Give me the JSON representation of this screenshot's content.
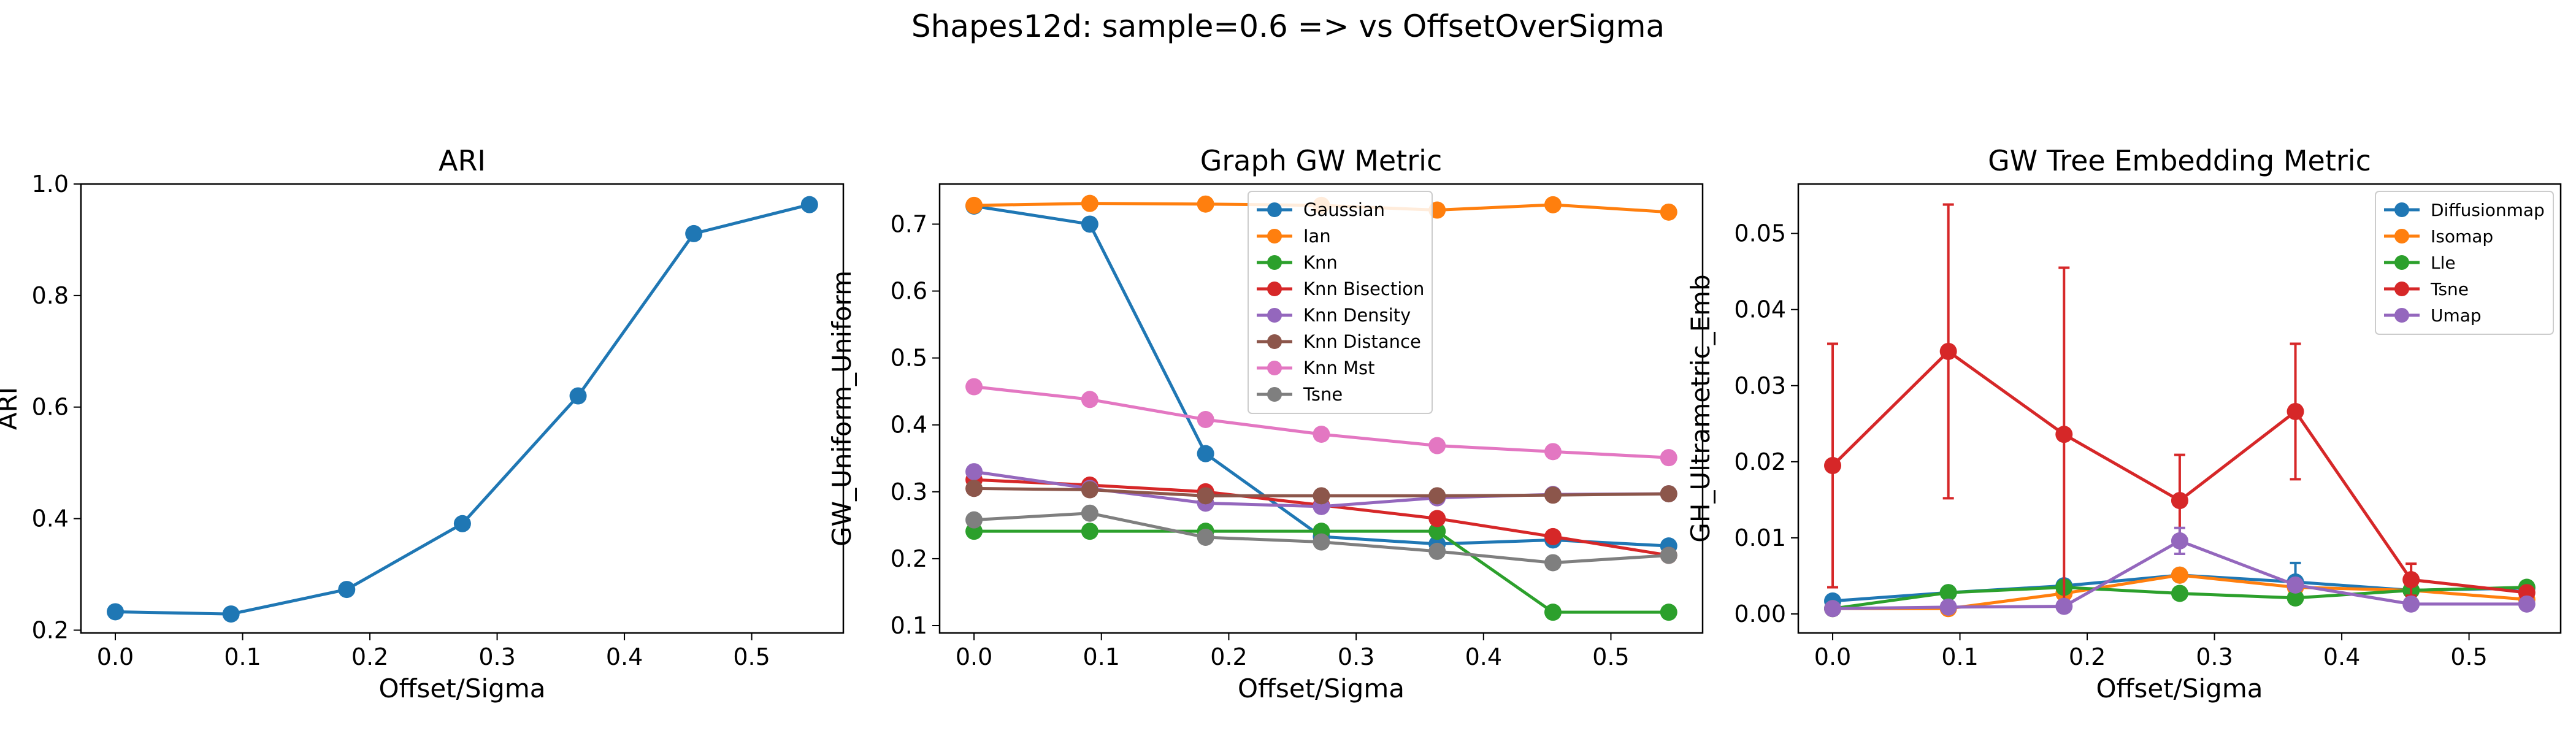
{
  "figure_title": "Shapes12d: sample=0.6 => vs OffsetOverSigma",
  "colors": {
    "blue": "#1f77b4",
    "orange": "#ff7f0e",
    "green": "#2ca02c",
    "red": "#d62728",
    "purple": "#9467bd",
    "brown": "#8c564b",
    "pink": "#e377c2",
    "gray": "#7f7f7f"
  },
  "chart_data": [
    {
      "type": "line",
      "title": "ARI",
      "xlabel": "Offset/Sigma",
      "ylabel": "ARI",
      "x": [
        0.0,
        0.0909,
        0.1818,
        0.2727,
        0.3636,
        0.4545,
        0.5454
      ],
      "xlim": [
        -0.027,
        0.572
      ],
      "ylim": [
        0.195,
        1.0
      ],
      "xticks": [
        0.0,
        0.1,
        0.2,
        0.3,
        0.4,
        0.5
      ],
      "xtick_labels": [
        "0.0",
        "0.1",
        "0.2",
        "0.3",
        "0.4",
        "0.5"
      ],
      "yticks": [
        0.2,
        0.4,
        0.6,
        0.8,
        1.0
      ],
      "ytick_labels": [
        "0.2",
        "0.4",
        "0.6",
        "0.8",
        "1.0"
      ],
      "legend": "none",
      "series": [
        {
          "name": "ARI",
          "color": "#1f77b4",
          "values": [
            0.233,
            0.229,
            0.273,
            0.391,
            0.62,
            0.911,
            0.963
          ]
        }
      ]
    },
    {
      "type": "line",
      "title": "Graph GW Metric",
      "xlabel": "Offset/Sigma",
      "ylabel": "GW_Uniform_Uniform",
      "x": [
        0.0,
        0.0909,
        0.1818,
        0.2727,
        0.3636,
        0.4545,
        0.5454
      ],
      "xlim": [
        -0.027,
        0.572
      ],
      "ylim": [
        0.089,
        0.76
      ],
      "xticks": [
        0.0,
        0.1,
        0.2,
        0.3,
        0.4,
        0.5
      ],
      "xtick_labels": [
        "0.0",
        "0.1",
        "0.2",
        "0.3",
        "0.4",
        "0.5"
      ],
      "yticks": [
        0.1,
        0.2,
        0.3,
        0.4,
        0.5,
        0.6,
        0.7
      ],
      "ytick_labels": [
        "0.1",
        "0.2",
        "0.3",
        "0.4",
        "0.5",
        "0.6",
        "0.7"
      ],
      "legend": "top-center",
      "series": [
        {
          "name": "Gaussian",
          "color": "#1f77b4",
          "values": [
            0.727,
            0.7,
            0.357,
            0.233,
            0.222,
            0.228,
            0.219
          ]
        },
        {
          "name": "Ian",
          "color": "#ff7f0e",
          "values": [
            0.728,
            0.731,
            0.73,
            0.728,
            0.721,
            0.729,
            0.718
          ]
        },
        {
          "name": "Knn",
          "color": "#2ca02c",
          "values": [
            0.241,
            0.241,
            0.241,
            0.241,
            0.241,
            0.12,
            0.12
          ]
        },
        {
          "name": "Knn Bisection",
          "color": "#d62728",
          "values": [
            0.318,
            0.31,
            0.3,
            0.28,
            0.26,
            0.233,
            0.205
          ]
        },
        {
          "name": "Knn Density",
          "color": "#9467bd",
          "values": [
            0.33,
            0.305,
            0.283,
            0.278,
            0.291,
            0.296,
            0.297
          ]
        },
        {
          "name": "Knn Distance",
          "color": "#8c564b",
          "values": [
            0.305,
            0.303,
            0.294,
            0.294,
            0.294,
            0.295,
            0.297
          ]
        },
        {
          "name": "Knn Mst",
          "color": "#e377c2",
          "values": [
            0.457,
            0.438,
            0.408,
            0.386,
            0.369,
            0.36,
            0.351
          ]
        },
        {
          "name": "Tsne",
          "color": "#7f7f7f",
          "values": [
            0.258,
            0.268,
            0.232,
            0.225,
            0.211,
            0.194,
            0.205
          ]
        }
      ]
    },
    {
      "type": "line",
      "title": "GW Tree Embedding Metric",
      "xlabel": "Offset/Sigma",
      "ylabel": "GH_Ultrametric_Emb",
      "x": [
        0.0,
        0.0909,
        0.1818,
        0.2727,
        0.3636,
        0.4545,
        0.5454
      ],
      "xlim": [
        -0.027,
        0.572
      ],
      "ylim": [
        -0.0025,
        0.0565
      ],
      "xticks": [
        0.0,
        0.1,
        0.2,
        0.3,
        0.4,
        0.5
      ],
      "xtick_labels": [
        "0.0",
        "0.1",
        "0.2",
        "0.3",
        "0.4",
        "0.5"
      ],
      "yticks": [
        0.0,
        0.01,
        0.02,
        0.03,
        0.04,
        0.05
      ],
      "ytick_labels": [
        "0.00",
        "0.01",
        "0.02",
        "0.03",
        "0.04",
        "0.05"
      ],
      "legend": "top-right",
      "series": [
        {
          "name": "Diffusionmap",
          "color": "#1f77b4",
          "values": [
            0.0017,
            0.0028,
            0.0037,
            0.0051,
            0.0042,
            0.0031,
            0.0034
          ],
          "err": [
            0.0003,
            0.0004,
            0.0004,
            0.0005,
            0.0025,
            0.0004,
            0.0007
          ]
        },
        {
          "name": "Isomap",
          "color": "#ff7f0e",
          "values": [
            0.0007,
            0.0007,
            0.0027,
            0.0051,
            0.0035,
            0.0031,
            0.0019
          ],
          "err": [
            0.0002,
            0.0002,
            0.0004,
            0.0005,
            0.0005,
            0.0004,
            0.0003
          ]
        },
        {
          "name": "Lle",
          "color": "#2ca02c",
          "values": [
            0.0007,
            0.0028,
            0.0035,
            0.0027,
            0.0021,
            0.0031,
            0.0035
          ],
          "err": [
            0.0002,
            0.0004,
            0.0004,
            0.0004,
            0.0003,
            0.0004,
            0.0004
          ]
        },
        {
          "name": "Tsne",
          "color": "#d62728",
          "values": [
            0.0195,
            0.0345,
            0.0236,
            0.0149,
            0.0266,
            0.0045,
            0.0028
          ],
          "err": [
            0.016,
            0.0193,
            0.0219,
            0.006,
            0.0089,
            0.0021,
            0.0006
          ]
        },
        {
          "name": "Umap",
          "color": "#9467bd",
          "values": [
            0.0007,
            0.0009,
            0.001,
            0.0096,
            0.0038,
            0.0013,
            0.0013
          ],
          "err": [
            0.0002,
            0.0002,
            0.0003,
            0.0017,
            0.0005,
            0.0002,
            0.0002
          ]
        }
      ]
    }
  ]
}
